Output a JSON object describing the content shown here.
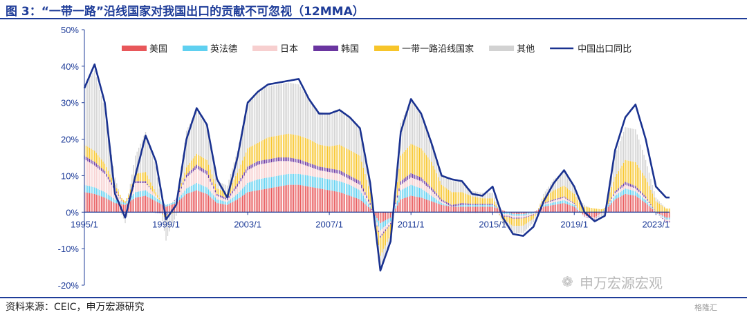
{
  "title": "图 3：“一带一路”沿线国家对我国出口的贡献不可忽视（12MMA）",
  "source": "资料来源：CEIC，申万宏源研究",
  "watermark": "申万宏源宏观",
  "corner_logo": "格隆汇",
  "colors": {
    "美国": "#e8575a",
    "英法德": "#5fd0f0",
    "日本": "#f7cfcf",
    "韩国": "#6a35a0",
    "一带一路沿线国家": "#f7c52a",
    "其他": "#d2d2d2",
    "中国出口同比": "#1a3290",
    "axis_text": "#1f3d99",
    "title": "#1f3d99"
  },
  "chart_data": {
    "type": "bar",
    "stacked": true,
    "title": "",
    "xlabel": "",
    "ylabel": "",
    "y_unit": "%",
    "ylim": [
      -20,
      50
    ],
    "yticks": [
      -20,
      -10,
      0,
      10,
      20,
      30,
      40,
      50
    ],
    "ytick_labels": [
      "-20%",
      "-10%",
      "0%",
      "10%",
      "20%",
      "30%",
      "40%",
      "50%"
    ],
    "x_tick_labels": [
      "1995/1",
      "1999/1",
      "2003/1",
      "2007/1",
      "2011/1",
      "2015/1",
      "2019/1",
      "2023/1"
    ],
    "x_tick_years": [
      1995,
      1999,
      2003,
      2007,
      2011,
      2015,
      2019,
      2023
    ],
    "legend_position": "top",
    "grid": false,
    "x_start": "1995-01",
    "x_end": "2023-09",
    "x_step": "quarter",
    "series_names": [
      "美国",
      "英法德",
      "日本",
      "韩国",
      "一带一路沿线国家",
      "其他"
    ],
    "line_series_name": "中国出口同比",
    "anchors": [
      {
        "x": "1995-01",
        "美国": 5.5,
        "英法德": 2.0,
        "日本": 7.0,
        "韩国": 1.0,
        "一带一路沿线国家": 3.0,
        "其他": 16.0,
        "中国出口同比": 34.0
      },
      {
        "x": "1995-07",
        "美国": 5.0,
        "英法德": 1.8,
        "日本": 6.0,
        "韩国": 1.0,
        "一带一路沿线国家": 3.0,
        "其他": 22.0,
        "中国出口同比": 40.5
      },
      {
        "x": "1996-01",
        "美国": 4.0,
        "英法德": 1.5,
        "日本": 5.0,
        "韩国": 0.8,
        "一带一路沿线国家": 2.0,
        "其他": 15.0,
        "中国出口同比": 30.0
      },
      {
        "x": "1996-07",
        "美国": 2.5,
        "英法德": 1.0,
        "日本": 2.5,
        "韩国": 0.5,
        "一带一路沿线国家": 1.0,
        "其他": 2.0,
        "中国出口同比": 5.0
      },
      {
        "x": "1997-01",
        "美国": 2.0,
        "英法德": 0.5,
        "日本": -1.0,
        "韩国": 0.0,
        "一带一路沿线国家": 0.5,
        "其他": -2.0,
        "中国出口同比": -1.5
      },
      {
        "x": "1997-07",
        "美国": 4.0,
        "英法德": 1.5,
        "日本": 2.5,
        "韩国": 0.5,
        "一带一路沿线国家": 2.0,
        "其他": 5.0,
        "中国出口同比": 10.0
      },
      {
        "x": "1998-01",
        "美国": 4.5,
        "英法德": 1.5,
        "日本": 2.0,
        "韩国": 0.5,
        "一带一路沿线国家": 2.5,
        "其他": 11.0,
        "中国出口同比": 21.0
      },
      {
        "x": "1998-07",
        "美国": 3.0,
        "英法德": 1.0,
        "日本": 0.5,
        "韩国": -0.2,
        "一带一路沿线国家": 1.0,
        "其他": 7.0,
        "中国出口同比": 14.0
      },
      {
        "x": "1999-01",
        "美国": 1.5,
        "英法德": 0.5,
        "日本": -0.5,
        "韩国": -0.3,
        "一带一路沿线国家": -1.0,
        "其他": -6.0,
        "中国出口同比": -2.0
      },
      {
        "x": "1999-07",
        "美国": 2.5,
        "英法德": 0.5,
        "日本": 0.5,
        "韩国": 0.2,
        "一带一路沿线国家": 0.0,
        "其他": -1.0,
        "中国出口同比": 2.0
      },
      {
        "x": "2000-01",
        "美国": 5.0,
        "英法德": 1.5,
        "日本": 3.0,
        "韩国": 0.8,
        "一带一路沿线国家": 2.0,
        "其他": 10.0,
        "中国出口同比": 20.0
      },
      {
        "x": "2000-07",
        "美国": 6.0,
        "英法德": 2.0,
        "日本": 4.0,
        "韩国": 1.0,
        "一带一路沿线国家": 3.0,
        "其他": 12.0,
        "中国出口同比": 28.5
      },
      {
        "x": "2001-01",
        "美国": 5.0,
        "英法德": 1.8,
        "日本": 3.5,
        "韩国": 1.0,
        "一带一路沿线国家": 3.0,
        "其他": 9.0,
        "中国出口同比": 24.0
      },
      {
        "x": "2001-07",
        "美国": 2.5,
        "英法德": 1.0,
        "日本": 1.0,
        "韩国": 0.5,
        "一带一路沿线国家": 1.5,
        "其他": 2.0,
        "中国出口同比": 9.0
      },
      {
        "x": "2002-01",
        "美国": 2.0,
        "英法德": 0.8,
        "日本": 0.5,
        "韩国": 0.5,
        "一带一路沿线国家": 1.5,
        "其他": 2.0,
        "中国出口同比": 4.0
      },
      {
        "x": "2002-07",
        "美国": 3.5,
        "英法德": 1.5,
        "日本": 2.0,
        "韩国": 0.8,
        "一带一路沿线国家": 3.0,
        "其他": 6.0,
        "中国出口同比": 15.0
      },
      {
        "x": "2003-01",
        "美国": 5.5,
        "英法德": 2.5,
        "日本": 3.5,
        "韩国": 1.0,
        "一带一路沿线国家": 5.0,
        "其他": 13.0,
        "中国出口同比": 30.0
      },
      {
        "x": "2003-07",
        "美国": 6.0,
        "英法德": 3.0,
        "日本": 4.0,
        "韩国": 1.0,
        "一带一路沿线国家": 5.0,
        "其他": 14.0,
        "中国出口同比": 33.0
      },
      {
        "x": "2004-01",
        "美国": 6.5,
        "英法德": 3.0,
        "日本": 4.0,
        "韩国": 1.0,
        "一带一路沿线国家": 6.0,
        "其他": 14.0,
        "中国出口同比": 35.0
      },
      {
        "x": "2004-07",
        "美国": 7.0,
        "英法德": 3.0,
        "日本": 4.0,
        "韩国": 1.0,
        "一带一路沿线国家": 6.0,
        "其他": 14.0,
        "中国出口同比": 35.5
      },
      {
        "x": "2005-01",
        "美国": 7.5,
        "英法德": 3.0,
        "日本": 3.5,
        "韩国": 1.0,
        "一带一路沿线国家": 6.5,
        "其他": 14.0,
        "中国出口同比": 36.0
      },
      {
        "x": "2005-07",
        "美国": 7.5,
        "英法德": 3.0,
        "日本": 3.0,
        "韩国": 1.0,
        "一带一路沿线国家": 6.5,
        "其他": 14.0,
        "中国出口同比": 36.5
      },
      {
        "x": "2006-01",
        "美国": 7.0,
        "英法德": 3.0,
        "日本": 2.5,
        "韩国": 1.0,
        "一带一路沿线国家": 6.5,
        "其他": 11.0,
        "中国出口同比": 31.0
      },
      {
        "x": "2006-07",
        "美国": 6.5,
        "英法德": 3.0,
        "日本": 2.0,
        "韩国": 1.0,
        "一带一路沿线国家": 6.0,
        "其他": 9.0,
        "中国出口同比": 27.0
      },
      {
        "x": "2007-01",
        "美国": 6.0,
        "英法德": 3.0,
        "日本": 2.0,
        "韩国": 1.0,
        "一带一路沿线国家": 6.0,
        "其他": 9.0,
        "中国出口同比": 27.0
      },
      {
        "x": "2007-07",
        "美国": 5.5,
        "英法德": 3.0,
        "日本": 2.0,
        "韩国": 1.0,
        "一带一路沿线国家": 7.0,
        "其他": 10.0,
        "中国出口同比": 28.0
      },
      {
        "x": "2008-01",
        "美国": 4.5,
        "英法德": 3.0,
        "日本": 1.5,
        "韩国": 1.0,
        "一带一路沿线国家": 7.0,
        "其他": 9.0,
        "中国出口同比": 26.0
      },
      {
        "x": "2008-07",
        "美国": 3.5,
        "英法德": 2.5,
        "日本": 1.5,
        "韩国": 1.0,
        "一带一路沿线国家": 7.0,
        "其他": 7.0,
        "中国出口同比": 23.0
      },
      {
        "x": "2009-01",
        "美国": 1.0,
        "英法德": 0.5,
        "日本": 0.5,
        "韩国": 0.5,
        "一带一路沿线国家": 3.0,
        "其他": 2.0,
        "中国出口同比": 8.0
      },
      {
        "x": "2009-07",
        "美国": -3.0,
        "英法德": -2.0,
        "日本": -1.5,
        "韩国": -0.5,
        "一带一路沿线国家": -5.0,
        "其他": -4.0,
        "中国出口同比": -16.0
      },
      {
        "x": "2010-01",
        "美国": -1.5,
        "英法德": -1.0,
        "日本": -0.5,
        "韩国": -0.3,
        "一带一路沿线国家": -3.0,
        "其他": -2.0,
        "中国出口同比": -8.0
      },
      {
        "x": "2010-07",
        "美国": 3.5,
        "英法德": 2.5,
        "日本": 1.5,
        "韩国": 1.0,
        "一带一路沿线国家": 7.0,
        "其他": 9.0,
        "中国出口同比": 22.0
      },
      {
        "x": "2011-01",
        "美国": 4.5,
        "英法德": 3.0,
        "日本": 2.0,
        "韩国": 1.2,
        "一带一路沿线国家": 8.0,
        "其他": 12.0,
        "中国出口同比": 31.0
      },
      {
        "x": "2011-07",
        "美国": 4.0,
        "英法德": 2.5,
        "日本": 2.0,
        "韩国": 1.0,
        "一带一路沿线国家": 8.0,
        "其他": 10.0,
        "中国出口同比": 27.0
      },
      {
        "x": "2012-01",
        "美国": 3.0,
        "英法德": 1.5,
        "日本": 1.5,
        "韩国": 0.8,
        "一带一路沿线国家": 7.0,
        "其他": 6.0,
        "中国出口同比": 19.0
      },
      {
        "x": "2012-07",
        "美国": 2.0,
        "英法德": 0.5,
        "日本": 0.5,
        "韩国": 0.5,
        "一带一路沿线国家": 4.0,
        "其他": 3.0,
        "中国出口同比": 10.0
      },
      {
        "x": "2013-01",
        "美国": 1.5,
        "英法德": 0.0,
        "日本": 0.0,
        "韩国": 0.5,
        "一带一路沿线国家": 3.5,
        "其他": 3.0,
        "中国出口同比": 9.0
      },
      {
        "x": "2013-07",
        "美国": 1.5,
        "英法德": 0.5,
        "日本": -0.3,
        "韩国": 0.5,
        "一带一路沿线国家": 3.0,
        "其他": 3.0,
        "中国出口同比": 8.5
      },
      {
        "x": "2014-01",
        "美国": 1.5,
        "英法德": 0.5,
        "日本": -0.3,
        "韩国": 0.3,
        "一带一路沿线国家": 2.0,
        "其他": 1.5,
        "中国出口同比": 5.0
      },
      {
        "x": "2014-07",
        "美国": 1.5,
        "英法德": 0.5,
        "日本": -0.3,
        "韩国": 0.3,
        "一带一路沿线国家": 1.5,
        "其他": 1.5,
        "中国出口同比": 4.5
      },
      {
        "x": "2015-01",
        "美国": 1.5,
        "英法德": 0.5,
        "日本": -0.2,
        "韩国": 0.3,
        "一带一路沿线国家": 1.5,
        "其他": 1.5,
        "中国出口同比": 7.0
      },
      {
        "x": "2015-07",
        "美国": 0.5,
        "英法德": -0.5,
        "日本": -0.5,
        "韩国": -0.2,
        "一带一路沿线国家": -1.0,
        "其他": -1.0,
        "中国出口同比": -1.5
      },
      {
        "x": "2016-01",
        "美国": -0.5,
        "英法德": -0.5,
        "日本": -0.5,
        "韩国": -0.3,
        "一带一路沿线国家": -2.0,
        "其他": -2.0,
        "中国出口同比": -6.0
      },
      {
        "x": "2016-07",
        "美国": -0.5,
        "英法德": -0.5,
        "日本": -0.5,
        "韩国": -0.2,
        "一带一路沿线国家": -2.0,
        "其他": -2.0,
        "中国出口同比": -6.5
      },
      {
        "x": "2017-01",
        "美国": 0.0,
        "英法德": -0.3,
        "日本": -0.3,
        "韩国": -0.2,
        "一带一路沿线国家": -1.0,
        "其他": -1.0,
        "中国出口同比": -4.0
      },
      {
        "x": "2017-07",
        "美国": 1.5,
        "英法德": 0.5,
        "日本": 0.3,
        "韩国": 0.2,
        "一带一路沿线国家": 1.5,
        "其他": 1.0,
        "中国出口同比": 3.0
      },
      {
        "x": "2018-01",
        "美国": 2.0,
        "英法德": 0.7,
        "日本": 0.5,
        "韩国": 0.3,
        "一带一路沿线国家": 2.5,
        "其他": 3.0,
        "中国出口同比": 8.0
      },
      {
        "x": "2018-07",
        "美国": 2.5,
        "英法德": 0.8,
        "日本": 0.7,
        "韩国": 0.3,
        "一带一路沿线国家": 3.0,
        "其他": 4.0,
        "中国出口同比": 11.5
      },
      {
        "x": "2019-01",
        "美国": 1.5,
        "英法德": 0.5,
        "日本": 0.3,
        "韩国": 0.2,
        "一带一路沿线国家": 2.5,
        "其他": 2.0,
        "中国出口同比": 7.0
      },
      {
        "x": "2019-07",
        "美国": -1.0,
        "英法德": 0.0,
        "日本": -0.2,
        "韩国": -0.1,
        "一带一路沿线国家": 1.5,
        "其他": 0.5,
        "中国出口同比": 0.0
      },
      {
        "x": "2020-01",
        "美国": -1.5,
        "英法德": 0.0,
        "日本": -0.3,
        "韩国": -0.2,
        "一带一路沿线国家": 1.0,
        "其他": -0.5,
        "中国出口同比": -2.5
      },
      {
        "x": "2020-07",
        "美国": 0.5,
        "英法德": 0.2,
        "日本": 0.0,
        "韩国": 0.0,
        "一带一路沿线国家": 0.5,
        "其他": -1.0,
        "中国出口同比": -1.0
      },
      {
        "x": "2021-01",
        "美国": 3.5,
        "英法德": 1.0,
        "日本": 0.7,
        "韩国": 0.5,
        "一带一路沿线国家": 4.0,
        "其他": 6.0,
        "中国出口同比": 17.0
      },
      {
        "x": "2021-07",
        "美国": 5.0,
        "英法德": 1.5,
        "日本": 1.0,
        "韩国": 0.8,
        "一带一路沿线国家": 6.0,
        "其他": 9.0,
        "中国出口同比": 26.0
      },
      {
        "x": "2022-01",
        "美国": 4.5,
        "英法德": 1.2,
        "日本": 0.8,
        "韩国": 0.7,
        "一带一路沿线国家": 6.5,
        "其他": 9.0,
        "中国出口同比": 29.5
      },
      {
        "x": "2022-07",
        "美国": 2.5,
        "英法德": 0.8,
        "日本": 0.5,
        "韩国": 0.5,
        "一带一路沿线国家": 5.0,
        "其他": 5.0,
        "中国出口同比": 20.0
      },
      {
        "x": "2023-01",
        "美国": 0.0,
        "英法德": 0.0,
        "日本": 0.0,
        "韩国": 0.0,
        "一带一路沿线国家": 3.0,
        "其他": 1.0,
        "中国出口同比": 7.0
      },
      {
        "x": "2023-07",
        "美国": -1.5,
        "英法德": -0.5,
        "日本": -0.5,
        "韩国": -0.3,
        "一带一路沿线国家": 1.0,
        "其他": 0.0,
        "中国出口同比": 4.0
      },
      {
        "x": "2023-09",
        "美国": -1.5,
        "英法德": -0.5,
        "日本": -0.5,
        "韩国": -0.3,
        "一带一路沿线国家": 1.0,
        "其他": 0.0,
        "中国出口同比": 4.0
      }
    ]
  }
}
